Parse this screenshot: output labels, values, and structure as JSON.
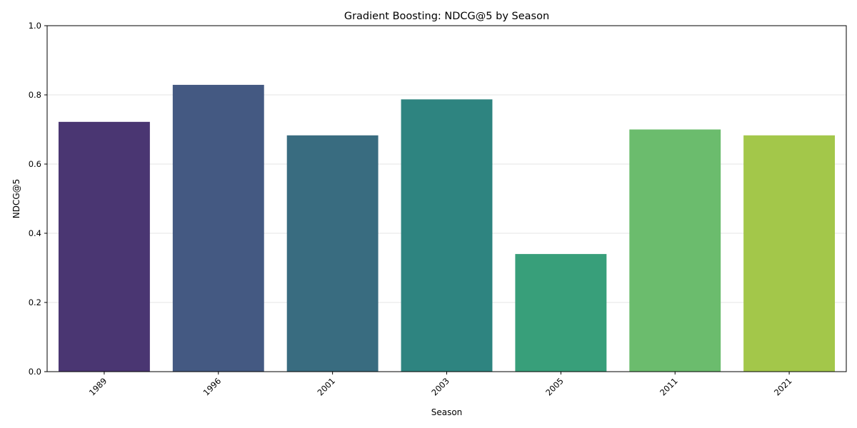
{
  "chart_data": {
    "type": "bar",
    "title": "Gradient Boosting: NDCG@5 by Season",
    "xlabel": "Season",
    "ylabel": "NDCG@5",
    "categories": [
      "1989",
      "1996",
      "2001",
      "2003",
      "2005",
      "2011",
      "2021"
    ],
    "values": [
      0.722,
      0.829,
      0.683,
      0.787,
      0.34,
      0.7,
      0.683
    ],
    "colors": [
      "#4a3672",
      "#445982",
      "#396c80",
      "#2e8480",
      "#389f7a",
      "#6bbc6d",
      "#a3c74a"
    ],
    "ylim": [
      0,
      1.0
    ],
    "yticks": [
      "0.0",
      "0.2",
      "0.4",
      "0.6",
      "0.8",
      "1.0"
    ],
    "grid": "y",
    "legend": "none"
  }
}
